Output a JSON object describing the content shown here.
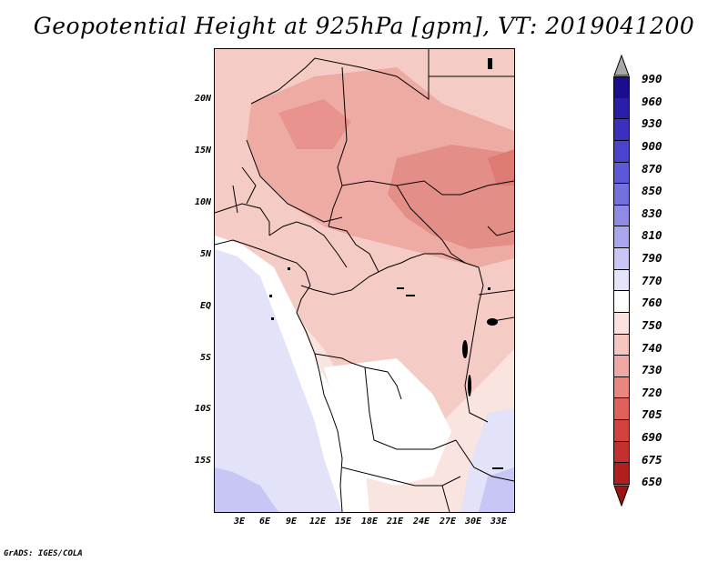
{
  "title": "Geopotential Height at 925hPa [gpm], VT: 2019041200",
  "credit": "GrADS: IGES/COLA",
  "map": {
    "lat_labels": [
      "20N",
      "15N",
      "10N",
      "5N",
      "EQ",
      "5S",
      "10S",
      "15S"
    ],
    "lon_labels": [
      "3E",
      "6E",
      "9E",
      "12E",
      "15E",
      "18E",
      "21E",
      "24E",
      "27E",
      "30E",
      "33E"
    ]
  },
  "colorbar": {
    "labels": [
      "990",
      "960",
      "930",
      "900",
      "870",
      "850",
      "830",
      "810",
      "790",
      "770",
      "760",
      "750",
      "740",
      "730",
      "720",
      "705",
      "690",
      "675",
      "650"
    ],
    "colors": [
      "#1a0e8c",
      "#2a1ea8",
      "#3a30c0",
      "#4a44cc",
      "#5c58d6",
      "#7470de",
      "#8e8ae6",
      "#aaa6ee",
      "#c8c6f5",
      "#e4e4fb",
      "#ffffff",
      "#fbe2de",
      "#f6c7c1",
      "#f0a9a2",
      "#e98680",
      "#e0605b",
      "#d44240",
      "#c4302d",
      "#b01f1c"
    ],
    "over_color": "#a8a8a8",
    "under_color": "#9c1512"
  }
}
